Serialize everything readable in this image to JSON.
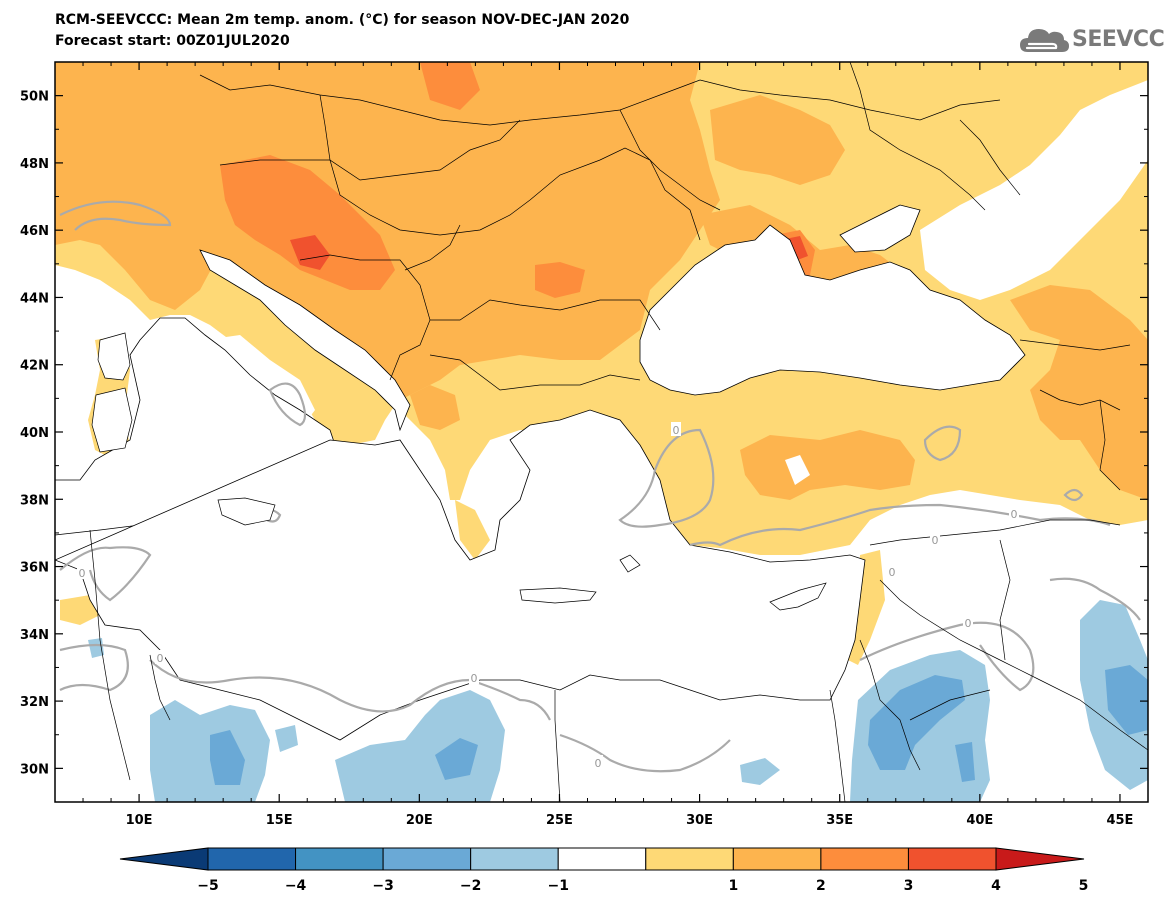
{
  "header": {
    "title_line1": "RCM-SEEVCCC: Mean 2m temp. anom. (°C) for season NOV-DEC-JAN 2020",
    "title_line2": "Forecast start: 00Z01JUL2020"
  },
  "logo": {
    "text": "SEEVCCC",
    "icon": "cloud-icon",
    "color": "#7a7a7a"
  },
  "map": {
    "lon_range": [
      7,
      46
    ],
    "lat_range": [
      29,
      51
    ],
    "lon_ticks": [
      "10E",
      "15E",
      "20E",
      "25E",
      "30E",
      "35E",
      "40E",
      "45E"
    ],
    "lat_ticks": [
      "30N",
      "32N",
      "34N",
      "36N",
      "38N",
      "40N",
      "42N",
      "44N",
      "46N",
      "48N",
      "50N"
    ],
    "zero_contour_label": "0"
  },
  "colorbar": {
    "labels": [
      "−5",
      "−4",
      "−3",
      "−2",
      "−1",
      "1",
      "2",
      "3",
      "4",
      "5"
    ],
    "colors": [
      "#0a3a75",
      "#2166ac",
      "#4393c3",
      "#6aa9d6",
      "#9ecae1",
      "#ffffff",
      "#fed976",
      "#fdb44e",
      "#fd8d3c",
      "#f0522e",
      "#c81a1a"
    ]
  },
  "palette": {
    "ocean": "#ffffff",
    "anom_1_2": "#fed976",
    "anom_2_3": "#fdb44e",
    "anom_3_4": "#fd8d3c",
    "anom_4_5": "#f0522e",
    "anom_m1_m2": "#9ecae1",
    "anom_m2_m3": "#6aa9d6",
    "contour": "#aaaaaa",
    "border": "#000000"
  }
}
